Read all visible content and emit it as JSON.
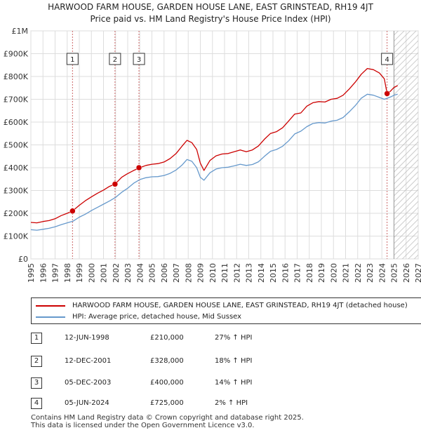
{
  "title": "HARWOOD FARM HOUSE, GARDEN HOUSE LANE, EAST GRINSTEAD, RH19 4JT",
  "subtitle": "Price paid vs. HM Land Registry's House Price Index (HPI)",
  "colors": {
    "property": "#cc0000",
    "hpi": "#6699cc",
    "marker_line": "#cc6666"
  },
  "chart_data": {
    "type": "line",
    "title": "HARWOOD FARM HOUSE, GARDEN HOUSE LANE, EAST GRINSTEAD, RH19 4JT",
    "subtitle": "Price paid vs. HM Land Registry's House Price Index (HPI)",
    "xlim": [
      1995,
      2027
    ],
    "ylim": [
      0,
      1000000
    ],
    "x_ticks": [
      "1995",
      "1996",
      "1997",
      "1998",
      "1999",
      "2000",
      "2001",
      "2002",
      "2003",
      "2004",
      "2005",
      "2006",
      "2007",
      "2008",
      "2009",
      "2010",
      "2011",
      "2012",
      "2013",
      "2014",
      "2015",
      "2016",
      "2017",
      "2018",
      "2019",
      "2020",
      "2021",
      "2022",
      "2023",
      "2024",
      "2025",
      "2026",
      "2027"
    ],
    "y_ticks": [
      {
        "value": 0,
        "label": "£0"
      },
      {
        "value": 100000,
        "label": "£100K"
      },
      {
        "value": 200000,
        "label": "£200K"
      },
      {
        "value": 300000,
        "label": "£300K"
      },
      {
        "value": 400000,
        "label": "£400K"
      },
      {
        "value": 500000,
        "label": "£500K"
      },
      {
        "value": 600000,
        "label": "£600K"
      },
      {
        "value": 700000,
        "label": "£700K"
      },
      {
        "value": 800000,
        "label": "£800K"
      },
      {
        "value": 900000,
        "label": "£900K"
      },
      {
        "value": 1000000,
        "label": "£1M"
      }
    ],
    "grid": true,
    "forecast_from": 2025.0,
    "series": [
      {
        "name": "HARWOOD FARM HOUSE, GARDEN HOUSE LANE, EAST GRINSTEAD, RH19 4JT (detached house)",
        "color": "#cc0000",
        "x": [
          1995.0,
          1995.5,
          1996.0,
          1996.5,
          1997.0,
          1997.5,
          1998.0,
          1998.44,
          1999.0,
          1999.5,
          2000.0,
          2000.5,
          2001.0,
          2001.5,
          2001.95,
          2002.5,
          2002.93,
          2003.5,
          2004.0,
          2004.5,
          2005.0,
          2005.5,
          2006.0,
          2006.5,
          2007.0,
          2007.5,
          2007.9,
          2008.3,
          2008.7,
          2009.0,
          2009.3,
          2009.8,
          2010.3,
          2010.8,
          2011.3,
          2011.8,
          2012.3,
          2012.8,
          2013.3,
          2013.8,
          2014.3,
          2014.8,
          2015.3,
          2015.8,
          2016.3,
          2016.8,
          2017.3,
          2017.8,
          2018.3,
          2018.8,
          2019.3,
          2019.8,
          2020.3,
          2020.8,
          2021.3,
          2021.8,
          2022.3,
          2022.8,
          2023.3,
          2023.8,
          2024.2,
          2024.43,
          2024.7,
          2025.0,
          2025.3
        ],
        "values": [
          160000,
          158000,
          164000,
          168000,
          176000,
          190000,
          200000,
          210000,
          235000,
          255000,
          272000,
          288000,
          302000,
          318000,
          328000,
          358000,
          372000,
          388000,
          400000,
          410000,
          415000,
          418000,
          425000,
          440000,
          462000,
          495000,
          520000,
          510000,
          480000,
          420000,
          388000,
          432000,
          452000,
          460000,
          462000,
          470000,
          478000,
          470000,
          478000,
          495000,
          525000,
          550000,
          558000,
          575000,
          605000,
          635000,
          640000,
          670000,
          685000,
          690000,
          688000,
          700000,
          704000,
          718000,
          745000,
          775000,
          810000,
          835000,
          830000,
          815000,
          790000,
          725000,
          735000,
          752000,
          760000
        ]
      },
      {
        "name": "HPI: Average price, detached house, Mid Sussex",
        "color": "#6699cc",
        "x": [
          1995.0,
          1995.5,
          1996.0,
          1996.5,
          1997.0,
          1997.5,
          1998.0,
          1998.5,
          1999.0,
          1999.5,
          2000.0,
          2000.5,
          2001.0,
          2001.5,
          2002.0,
          2002.5,
          2003.0,
          2003.5,
          2004.0,
          2004.5,
          2005.0,
          2005.5,
          2006.0,
          2006.5,
          2007.0,
          2007.5,
          2007.9,
          2008.3,
          2008.7,
          2009.0,
          2009.3,
          2009.8,
          2010.3,
          2010.8,
          2011.3,
          2011.8,
          2012.3,
          2012.8,
          2013.3,
          2013.8,
          2014.3,
          2014.8,
          2015.3,
          2015.8,
          2016.3,
          2016.8,
          2017.3,
          2017.8,
          2018.3,
          2018.8,
          2019.3,
          2019.8,
          2020.3,
          2020.8,
          2021.3,
          2021.8,
          2022.3,
          2022.8,
          2023.3,
          2023.8,
          2024.2,
          2024.5,
          2024.8,
          2025.0,
          2025.3
        ],
        "values": [
          128000,
          126000,
          130000,
          134000,
          141000,
          150000,
          158000,
          166000,
          183000,
          196000,
          212000,
          226000,
          240000,
          254000,
          270000,
          292000,
          310000,
          332000,
          348000,
          356000,
          360000,
          361000,
          366000,
          375000,
          390000,
          412000,
          436000,
          428000,
          400000,
          358000,
          345000,
          378000,
          394000,
          400000,
          402000,
          408000,
          415000,
          410000,
          414000,
          426000,
          450000,
          472000,
          480000,
          494000,
          518000,
          548000,
          560000,
          580000,
          594000,
          598000,
          596000,
          604000,
          608000,
          620000,
          645000,
          672000,
          705000,
          722000,
          718000,
          708000,
          700000,
          706000,
          712000,
          718000,
          722000
        ]
      }
    ],
    "sales": [
      {
        "id": "1",
        "x": 1998.44,
        "value": 210000,
        "date": "12-JUN-1998",
        "price": "£210,000",
        "hpi": "27% ↑ HPI"
      },
      {
        "id": "2",
        "x": 2001.95,
        "value": 328000,
        "date": "12-DEC-2001",
        "price": "£328,000",
        "hpi": "18% ↑ HPI"
      },
      {
        "id": "3",
        "x": 2003.93,
        "value": 400000,
        "date": "05-DEC-2003",
        "price": "£400,000",
        "hpi": "14% ↑ HPI"
      },
      {
        "id": "4",
        "x": 2024.43,
        "value": 725000,
        "date": "05-JUN-2024",
        "price": "£725,000",
        "hpi": "2% ↑ HPI"
      }
    ]
  },
  "legend": {
    "property_label": "HARWOOD FARM HOUSE, GARDEN HOUSE LANE, EAST GRINSTEAD, RH19 4JT (detached house)",
    "hpi_label": "HPI: Average price, detached house, Mid Sussex"
  },
  "footer": {
    "line1": "Contains HM Land Registry data © Crown copyright and database right 2025.",
    "line2": "This data is licensed under the Open Government Licence v3.0."
  }
}
